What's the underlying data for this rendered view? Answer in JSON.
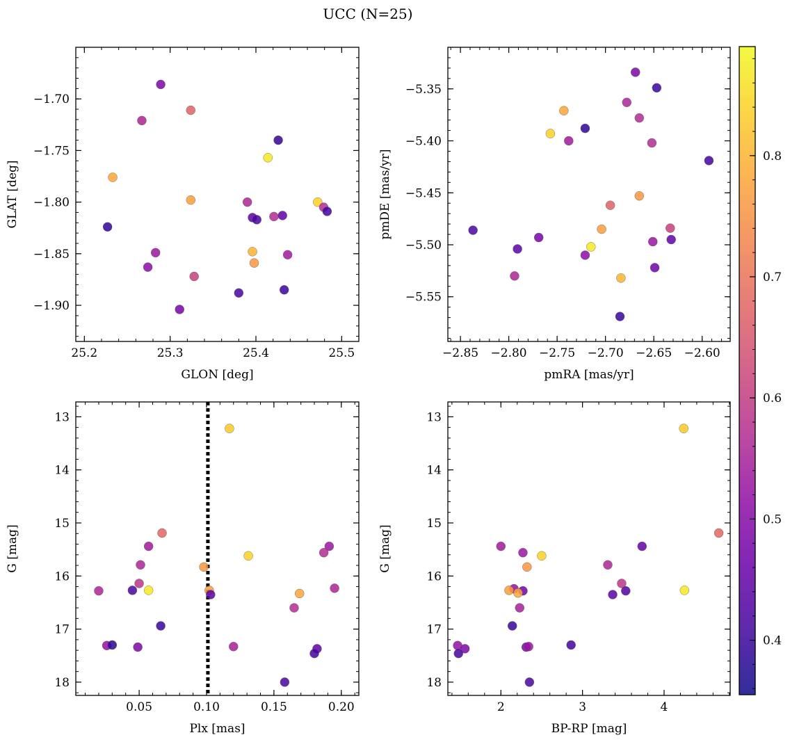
{
  "figure": {
    "suptitle": "UCC (N=25)"
  },
  "colorbar": {
    "cmap": "plasma",
    "vmin": 0.355,
    "vmax": 0.89,
    "ticks": [
      0.4,
      0.5,
      0.6,
      0.7,
      0.8
    ],
    "tick_labels": [
      "0.4",
      "0.5",
      "0.6",
      "0.7",
      "0.8"
    ]
  },
  "chart_data": [
    {
      "type": "scatter",
      "xlabel": "GLON [deg]",
      "ylabel": "GLAT [deg]",
      "xlim": [
        25.19,
        25.52
      ],
      "ylim": [
        -1.935,
        -1.65
      ],
      "xticks": [
        25.2,
        25.3,
        25.4,
        25.5
      ],
      "xtick_labels": [
        "25.2",
        "25.3",
        "25.4",
        "25.5"
      ],
      "yticks": [
        -1.7,
        -1.75,
        -1.8,
        -1.85,
        -1.9
      ],
      "ytick_labels": [
        "−1.70",
        "−1.75",
        "−1.80",
        "−1.85",
        "−1.90"
      ],
      "y_inverted": false,
      "points": [
        {
          "x": 25.289,
          "y": -1.686,
          "c": 0.49
        },
        {
          "x": 25.324,
          "y": -1.711,
          "c": 0.67
        },
        {
          "x": 25.267,
          "y": -1.721,
          "c": 0.56
        },
        {
          "x": 25.426,
          "y": -1.74,
          "c": 0.39
        },
        {
          "x": 25.414,
          "y": -1.757,
          "c": 0.87
        },
        {
          "x": 25.233,
          "y": -1.776,
          "c": 0.78
        },
        {
          "x": 25.324,
          "y": -1.798,
          "c": 0.77
        },
        {
          "x": 25.472,
          "y": -1.8,
          "c": 0.84
        },
        {
          "x": 25.479,
          "y": -1.805,
          "c": 0.57
        },
        {
          "x": 25.483,
          "y": -1.809,
          "c": 0.41
        },
        {
          "x": 25.39,
          "y": -1.8,
          "c": 0.56
        },
        {
          "x": 25.396,
          "y": -1.815,
          "c": 0.44
        },
        {
          "x": 25.401,
          "y": -1.817,
          "c": 0.42
        },
        {
          "x": 25.421,
          "y": -1.814,
          "c": 0.57
        },
        {
          "x": 25.431,
          "y": -1.813,
          "c": 0.45
        },
        {
          "x": 25.227,
          "y": -1.824,
          "c": 0.39
        },
        {
          "x": 25.396,
          "y": -1.848,
          "c": 0.8
        },
        {
          "x": 25.437,
          "y": -1.851,
          "c": 0.54
        },
        {
          "x": 25.283,
          "y": -1.849,
          "c": 0.53
        },
        {
          "x": 25.398,
          "y": -1.859,
          "c": 0.76
        },
        {
          "x": 25.274,
          "y": -1.863,
          "c": 0.51
        },
        {
          "x": 25.328,
          "y": -1.872,
          "c": 0.61
        },
        {
          "x": 25.433,
          "y": -1.885,
          "c": 0.4
        },
        {
          "x": 25.38,
          "y": -1.888,
          "c": 0.42
        },
        {
          "x": 25.311,
          "y": -1.904,
          "c": 0.48
        }
      ]
    },
    {
      "type": "scatter",
      "xlabel": "pmRA [mas/yr]",
      "ylabel": "pmDE [mas/yr]",
      "xlim": [
        -2.863,
        -2.571
      ],
      "ylim": [
        -5.593,
        -5.31
      ],
      "xticks": [
        -2.85,
        -2.8,
        -2.75,
        -2.7,
        -2.65,
        -2.6
      ],
      "xtick_labels": [
        "−2.85",
        "−2.80",
        "−2.75",
        "−2.70",
        "−2.65",
        "−2.60"
      ],
      "yticks": [
        -5.35,
        -5.4,
        -5.45,
        -5.5,
        -5.55
      ],
      "ytick_labels": [
        "−5.35",
        "−5.40",
        "−5.45",
        "−5.50",
        "−5.55"
      ],
      "y_inverted": false,
      "points": [
        {
          "x": -2.669,
          "y": -5.334,
          "c": 0.49
        },
        {
          "x": -2.647,
          "y": -5.349,
          "c": 0.4
        },
        {
          "x": -2.678,
          "y": -5.363,
          "c": 0.56
        },
        {
          "x": -2.743,
          "y": -5.371,
          "c": 0.78
        },
        {
          "x": -2.665,
          "y": -5.378,
          "c": 0.57
        },
        {
          "x": -2.721,
          "y": -5.388,
          "c": 0.39
        },
        {
          "x": -2.757,
          "y": -5.393,
          "c": 0.84
        },
        {
          "x": -2.738,
          "y": -5.4,
          "c": 0.54
        },
        {
          "x": -2.652,
          "y": -5.402,
          "c": 0.57
        },
        {
          "x": -2.593,
          "y": -5.419,
          "c": 0.41
        },
        {
          "x": -2.665,
          "y": -5.453,
          "c": 0.76
        },
        {
          "x": -2.695,
          "y": -5.462,
          "c": 0.67
        },
        {
          "x": -2.837,
          "y": -5.486,
          "c": 0.42
        },
        {
          "x": -2.704,
          "y": -5.485,
          "c": 0.77
        },
        {
          "x": -2.633,
          "y": -5.484,
          "c": 0.61
        },
        {
          "x": -2.769,
          "y": -5.493,
          "c": 0.48
        },
        {
          "x": -2.632,
          "y": -5.495,
          "c": 0.45
        },
        {
          "x": -2.651,
          "y": -5.497,
          "c": 0.53
        },
        {
          "x": -2.715,
          "y": -5.502,
          "c": 0.87
        },
        {
          "x": -2.791,
          "y": -5.504,
          "c": 0.44
        },
        {
          "x": -2.721,
          "y": -5.51,
          "c": 0.51
        },
        {
          "x": -2.649,
          "y": -5.522,
          "c": 0.47
        },
        {
          "x": -2.794,
          "y": -5.53,
          "c": 0.56
        },
        {
          "x": -2.684,
          "y": -5.532,
          "c": 0.8
        },
        {
          "x": -2.685,
          "y": -5.569,
          "c": 0.4
        }
      ]
    },
    {
      "type": "scatter",
      "xlabel": "Plx [mas]",
      "ylabel": "G [mag]",
      "xlim": [
        0.003,
        0.213
      ],
      "ylim": [
        18.25,
        12.72
      ],
      "xticks": [
        0.05,
        0.1,
        0.15,
        0.2
      ],
      "xtick_labels": [
        "0.05",
        "0.10",
        "0.15",
        "0.20"
      ],
      "yticks": [
        13,
        14,
        15,
        16,
        17,
        18
      ],
      "ytick_labels": [
        "13",
        "14",
        "15",
        "16",
        "17",
        "18"
      ],
      "y_inverted": true,
      "vline": {
        "x": 0.101,
        "style": "dotted",
        "color": "#000000"
      },
      "points": [
        {
          "x": 0.117,
          "y": 13.22,
          "c": 0.83
        },
        {
          "x": 0.067,
          "y": 15.19,
          "c": 0.68
        },
        {
          "x": 0.057,
          "y": 15.44,
          "c": 0.54
        },
        {
          "x": 0.191,
          "y": 15.44,
          "c": 0.53
        },
        {
          "x": 0.187,
          "y": 15.56,
          "c": 0.57
        },
        {
          "x": 0.131,
          "y": 15.62,
          "c": 0.84
        },
        {
          "x": 0.051,
          "y": 15.79,
          "c": 0.56
        },
        {
          "x": 0.098,
          "y": 15.83,
          "c": 0.76
        },
        {
          "x": 0.05,
          "y": 16.14,
          "c": 0.59
        },
        {
          "x": 0.195,
          "y": 16.23,
          "c": 0.56
        },
        {
          "x": 0.02,
          "y": 16.28,
          "c": 0.56
        },
        {
          "x": 0.045,
          "y": 16.27,
          "c": 0.42
        },
        {
          "x": 0.057,
          "y": 16.27,
          "c": 0.87
        },
        {
          "x": 0.102,
          "y": 16.27,
          "c": 0.77
        },
        {
          "x": 0.103,
          "y": 16.35,
          "c": 0.44
        },
        {
          "x": 0.169,
          "y": 16.33,
          "c": 0.78
        },
        {
          "x": 0.165,
          "y": 16.6,
          "c": 0.57
        },
        {
          "x": 0.066,
          "y": 16.94,
          "c": 0.4
        },
        {
          "x": 0.026,
          "y": 17.31,
          "c": 0.52
        },
        {
          "x": 0.03,
          "y": 17.3,
          "c": 0.39
        },
        {
          "x": 0.049,
          "y": 17.34,
          "c": 0.49
        },
        {
          "x": 0.12,
          "y": 17.33,
          "c": 0.55
        },
        {
          "x": 0.182,
          "y": 17.37,
          "c": 0.45
        },
        {
          "x": 0.18,
          "y": 17.46,
          "c": 0.41
        },
        {
          "x": 0.158,
          "y": 18.0,
          "c": 0.42
        }
      ]
    },
    {
      "type": "scatter",
      "xlabel": "BP-RP [mag]",
      "ylabel": "G [mag]",
      "xlim": [
        1.35,
        4.81
      ],
      "ylim": [
        18.25,
        12.72
      ],
      "xticks": [
        2,
        3,
        4
      ],
      "xtick_labels": [
        "2",
        "3",
        "4"
      ],
      "yticks": [
        13,
        14,
        15,
        16,
        17,
        18
      ],
      "ytick_labels": [
        "13",
        "14",
        "15",
        "16",
        "17",
        "18"
      ],
      "y_inverted": true,
      "points": [
        {
          "x": 4.24,
          "y": 13.22,
          "c": 0.83
        },
        {
          "x": 4.67,
          "y": 15.19,
          "c": 0.68
        },
        {
          "x": 2.0,
          "y": 15.44,
          "c": 0.54
        },
        {
          "x": 3.73,
          "y": 15.44,
          "c": 0.45
        },
        {
          "x": 2.27,
          "y": 15.56,
          "c": 0.53
        },
        {
          "x": 2.5,
          "y": 15.62,
          "c": 0.84
        },
        {
          "x": 3.31,
          "y": 15.79,
          "c": 0.56
        },
        {
          "x": 2.32,
          "y": 15.83,
          "c": 0.76
        },
        {
          "x": 3.48,
          "y": 16.14,
          "c": 0.59
        },
        {
          "x": 2.16,
          "y": 16.24,
          "c": 0.52
        },
        {
          "x": 2.27,
          "y": 16.28,
          "c": 0.47
        },
        {
          "x": 2.1,
          "y": 16.27,
          "c": 0.77
        },
        {
          "x": 2.21,
          "y": 16.32,
          "c": 0.78
        },
        {
          "x": 4.25,
          "y": 16.27,
          "c": 0.87
        },
        {
          "x": 3.53,
          "y": 16.28,
          "c": 0.43
        },
        {
          "x": 3.37,
          "y": 16.35,
          "c": 0.44
        },
        {
          "x": 2.23,
          "y": 16.6,
          "c": 0.55
        },
        {
          "x": 2.14,
          "y": 16.94,
          "c": 0.4
        },
        {
          "x": 2.86,
          "y": 17.3,
          "c": 0.41
        },
        {
          "x": 2.31,
          "y": 17.34,
          "c": 0.49
        },
        {
          "x": 2.34,
          "y": 17.33,
          "c": 0.53
        },
        {
          "x": 1.47,
          "y": 17.31,
          "c": 0.52
        },
        {
          "x": 1.56,
          "y": 17.37,
          "c": 0.49
        },
        {
          "x": 1.48,
          "y": 17.46,
          "c": 0.41
        },
        {
          "x": 2.35,
          "y": 18.0,
          "c": 0.42
        }
      ]
    }
  ]
}
